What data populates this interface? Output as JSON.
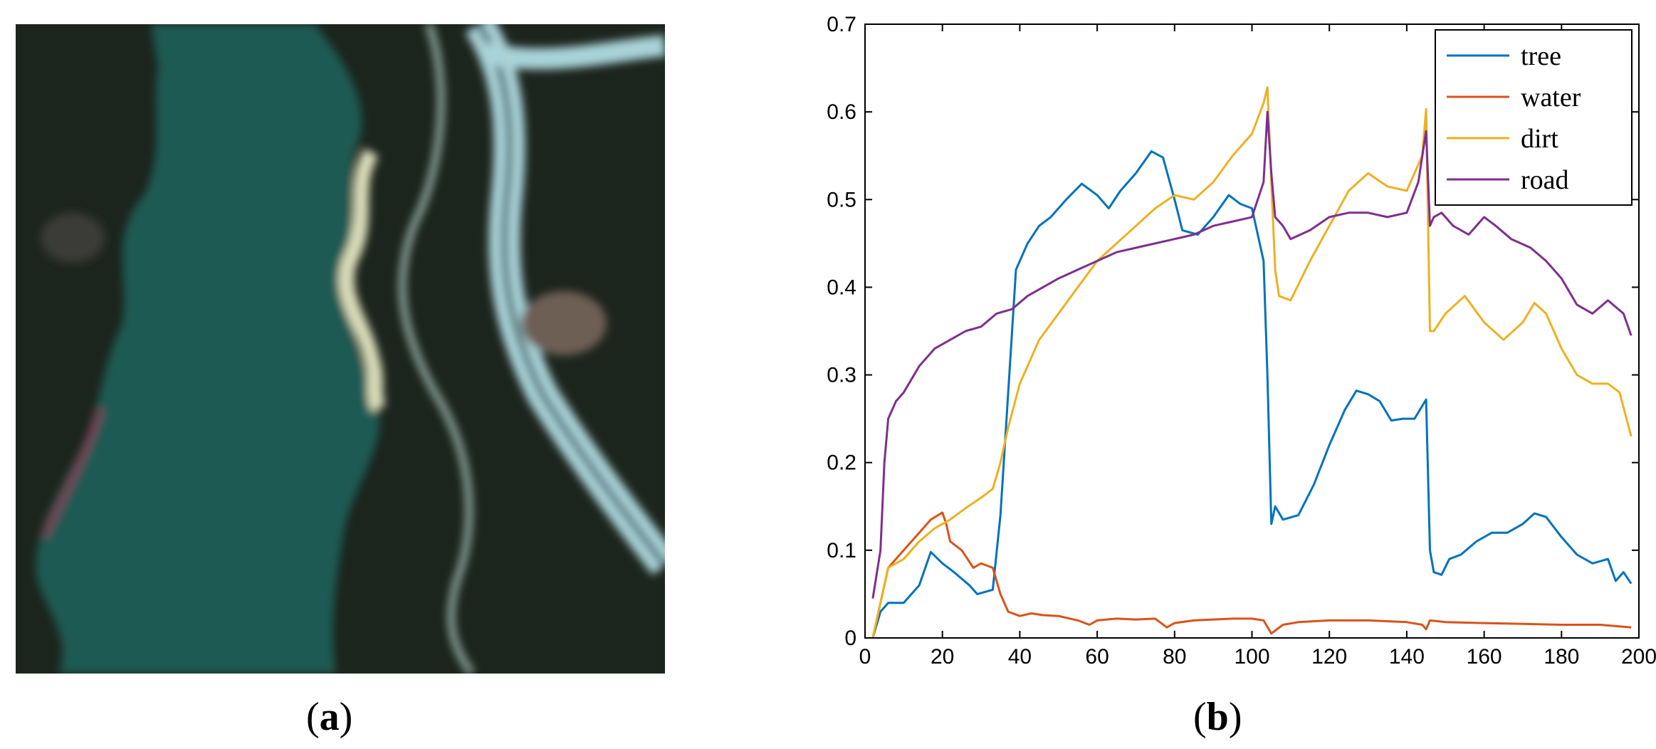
{
  "panel_labels": {
    "a": "a",
    "b": "b"
  },
  "image": {
    "description": "satellite-image",
    "colors": {
      "water": "#1f5a52",
      "vegetation": "#1c251d",
      "road": "#a9d3d8",
      "bank": "#d9dcb8"
    }
  },
  "chart_data": {
    "type": "line",
    "title": "",
    "xlabel": "",
    "ylabel": "",
    "xlim": [
      0,
      200
    ],
    "ylim": [
      0,
      0.7
    ],
    "xticks": [
      0,
      20,
      40,
      60,
      80,
      100,
      120,
      140,
      160,
      180,
      200
    ],
    "yticks": [
      0,
      0.1,
      0.2,
      0.3,
      0.4,
      0.5,
      0.6,
      0.7
    ],
    "grid": false,
    "legend": {
      "position": "top-right"
    },
    "series": [
      {
        "name": "tree",
        "color": "#0072BD",
        "points": [
          [
            2,
            0
          ],
          [
            4,
            0.03
          ],
          [
            6,
            0.04
          ],
          [
            10,
            0.04
          ],
          [
            14,
            0.06
          ],
          [
            17,
            0.098
          ],
          [
            20,
            0.085
          ],
          [
            23,
            0.075
          ],
          [
            27,
            0.06
          ],
          [
            29,
            0.05
          ],
          [
            33,
            0.055
          ],
          [
            35,
            0.14
          ],
          [
            37,
            0.28
          ],
          [
            39,
            0.42
          ],
          [
            42,
            0.45
          ],
          [
            45,
            0.47
          ],
          [
            48,
            0.48
          ],
          [
            52,
            0.5
          ],
          [
            56,
            0.518
          ],
          [
            60,
            0.505
          ],
          [
            63,
            0.49
          ],
          [
            66,
            0.51
          ],
          [
            70,
            0.53
          ],
          [
            74,
            0.555
          ],
          [
            77,
            0.548
          ],
          [
            80,
            0.5
          ],
          [
            82,
            0.465
          ],
          [
            86,
            0.46
          ],
          [
            90,
            0.48
          ],
          [
            94,
            0.505
          ],
          [
            97,
            0.495
          ],
          [
            100,
            0.49
          ],
          [
            103,
            0.43
          ],
          [
            104,
            0.3
          ],
          [
            105,
            0.13
          ],
          [
            106,
            0.15
          ],
          [
            108,
            0.135
          ],
          [
            112,
            0.14
          ],
          [
            116,
            0.175
          ],
          [
            120,
            0.22
          ],
          [
            124,
            0.26
          ],
          [
            127,
            0.282
          ],
          [
            130,
            0.278
          ],
          [
            133,
            0.27
          ],
          [
            136,
            0.248
          ],
          [
            139,
            0.25
          ],
          [
            142,
            0.25
          ],
          [
            145,
            0.272
          ],
          [
            146,
            0.1
          ],
          [
            147,
            0.075
          ],
          [
            149,
            0.072
          ],
          [
            151,
            0.09
          ],
          [
            154,
            0.095
          ],
          [
            158,
            0.11
          ],
          [
            162,
            0.12
          ],
          [
            166,
            0.12
          ],
          [
            170,
            0.13
          ],
          [
            173,
            0.142
          ],
          [
            176,
            0.138
          ],
          [
            180,
            0.115
          ],
          [
            184,
            0.095
          ],
          [
            188,
            0.085
          ],
          [
            192,
            0.09
          ],
          [
            194,
            0.065
          ],
          [
            196,
            0.075
          ],
          [
            198,
            0.062
          ]
        ]
      },
      {
        "name": "water",
        "color": "#D95319",
        "points": [
          [
            2,
            0
          ],
          [
            4,
            0.04
          ],
          [
            6,
            0.08
          ],
          [
            10,
            0.1
          ],
          [
            14,
            0.12
          ],
          [
            17,
            0.135
          ],
          [
            20,
            0.143
          ],
          [
            21,
            0.13
          ],
          [
            22,
            0.11
          ],
          [
            25,
            0.1
          ],
          [
            28,
            0.08
          ],
          [
            30,
            0.085
          ],
          [
            33,
            0.08
          ],
          [
            35,
            0.05
          ],
          [
            37,
            0.03
          ],
          [
            40,
            0.025
          ],
          [
            43,
            0.028
          ],
          [
            46,
            0.026
          ],
          [
            50,
            0.025
          ],
          [
            55,
            0.02
          ],
          [
            58,
            0.015
          ],
          [
            60,
            0.02
          ],
          [
            65,
            0.022
          ],
          [
            70,
            0.021
          ],
          [
            75,
            0.022
          ],
          [
            78,
            0.012
          ],
          [
            80,
            0.017
          ],
          [
            85,
            0.02
          ],
          [
            90,
            0.021
          ],
          [
            95,
            0.022
          ],
          [
            100,
            0.022
          ],
          [
            103,
            0.02
          ],
          [
            105,
            0.005
          ],
          [
            108,
            0.015
          ],
          [
            112,
            0.018
          ],
          [
            120,
            0.02
          ],
          [
            130,
            0.02
          ],
          [
            140,
            0.018
          ],
          [
            144,
            0.015
          ],
          [
            145,
            0.01
          ],
          [
            146,
            0.02
          ],
          [
            150,
            0.018
          ],
          [
            160,
            0.017
          ],
          [
            170,
            0.016
          ],
          [
            180,
            0.015
          ],
          [
            190,
            0.015
          ],
          [
            198,
            0.012
          ]
        ]
      },
      {
        "name": "dirt",
        "color": "#EDB120",
        "points": [
          [
            2,
            0
          ],
          [
            4,
            0.04
          ],
          [
            6,
            0.08
          ],
          [
            10,
            0.09
          ],
          [
            14,
            0.11
          ],
          [
            18,
            0.125
          ],
          [
            22,
            0.135
          ],
          [
            26,
            0.148
          ],
          [
            30,
            0.16
          ],
          [
            33,
            0.17
          ],
          [
            35,
            0.2
          ],
          [
            37,
            0.24
          ],
          [
            40,
            0.29
          ],
          [
            45,
            0.34
          ],
          [
            50,
            0.37
          ],
          [
            55,
            0.4
          ],
          [
            60,
            0.43
          ],
          [
            65,
            0.45
          ],
          [
            70,
            0.47
          ],
          [
            75,
            0.49
          ],
          [
            80,
            0.505
          ],
          [
            85,
            0.5
          ],
          [
            90,
            0.52
          ],
          [
            95,
            0.55
          ],
          [
            100,
            0.575
          ],
          [
            103,
            0.61
          ],
          [
            104,
            0.628
          ],
          [
            105,
            0.52
          ],
          [
            106,
            0.42
          ],
          [
            107,
            0.39
          ],
          [
            110,
            0.385
          ],
          [
            115,
            0.43
          ],
          [
            120,
            0.47
          ],
          [
            125,
            0.51
          ],
          [
            130,
            0.53
          ],
          [
            135,
            0.515
          ],
          [
            140,
            0.51
          ],
          [
            144,
            0.55
          ],
          [
            145,
            0.603
          ],
          [
            146,
            0.35
          ],
          [
            147,
            0.35
          ],
          [
            150,
            0.37
          ],
          [
            155,
            0.39
          ],
          [
            160,
            0.36
          ],
          [
            165,
            0.34
          ],
          [
            170,
            0.36
          ],
          [
            173,
            0.382
          ],
          [
            176,
            0.37
          ],
          [
            180,
            0.33
          ],
          [
            184,
            0.3
          ],
          [
            188,
            0.29
          ],
          [
            192,
            0.29
          ],
          [
            195,
            0.28
          ],
          [
            198,
            0.23
          ]
        ]
      },
      {
        "name": "road",
        "color": "#7E2F8E",
        "points": [
          [
            2,
            0.045
          ],
          [
            4,
            0.1
          ],
          [
            5,
            0.2
          ],
          [
            6,
            0.25
          ],
          [
            8,
            0.27
          ],
          [
            10,
            0.28
          ],
          [
            14,
            0.31
          ],
          [
            18,
            0.33
          ],
          [
            22,
            0.34
          ],
          [
            26,
            0.35
          ],
          [
            30,
            0.355
          ],
          [
            34,
            0.37
          ],
          [
            38,
            0.375
          ],
          [
            42,
            0.39
          ],
          [
            46,
            0.4
          ],
          [
            50,
            0.41
          ],
          [
            55,
            0.42
          ],
          [
            60,
            0.43
          ],
          [
            65,
            0.44
          ],
          [
            70,
            0.445
          ],
          [
            75,
            0.45
          ],
          [
            80,
            0.455
          ],
          [
            85,
            0.46
          ],
          [
            90,
            0.47
          ],
          [
            95,
            0.475
          ],
          [
            100,
            0.48
          ],
          [
            103,
            0.52
          ],
          [
            104,
            0.6
          ],
          [
            105,
            0.53
          ],
          [
            106,
            0.48
          ],
          [
            108,
            0.47
          ],
          [
            110,
            0.455
          ],
          [
            115,
            0.465
          ],
          [
            120,
            0.48
          ],
          [
            125,
            0.485
          ],
          [
            130,
            0.485
          ],
          [
            135,
            0.48
          ],
          [
            140,
            0.485
          ],
          [
            143,
            0.52
          ],
          [
            145,
            0.578
          ],
          [
            146,
            0.47
          ],
          [
            147,
            0.48
          ],
          [
            149,
            0.485
          ],
          [
            152,
            0.47
          ],
          [
            156,
            0.46
          ],
          [
            160,
            0.48
          ],
          [
            163,
            0.47
          ],
          [
            167,
            0.455
          ],
          [
            172,
            0.445
          ],
          [
            176,
            0.43
          ],
          [
            180,
            0.41
          ],
          [
            184,
            0.38
          ],
          [
            188,
            0.37
          ],
          [
            192,
            0.385
          ],
          [
            196,
            0.37
          ],
          [
            198,
            0.345
          ]
        ]
      }
    ]
  }
}
